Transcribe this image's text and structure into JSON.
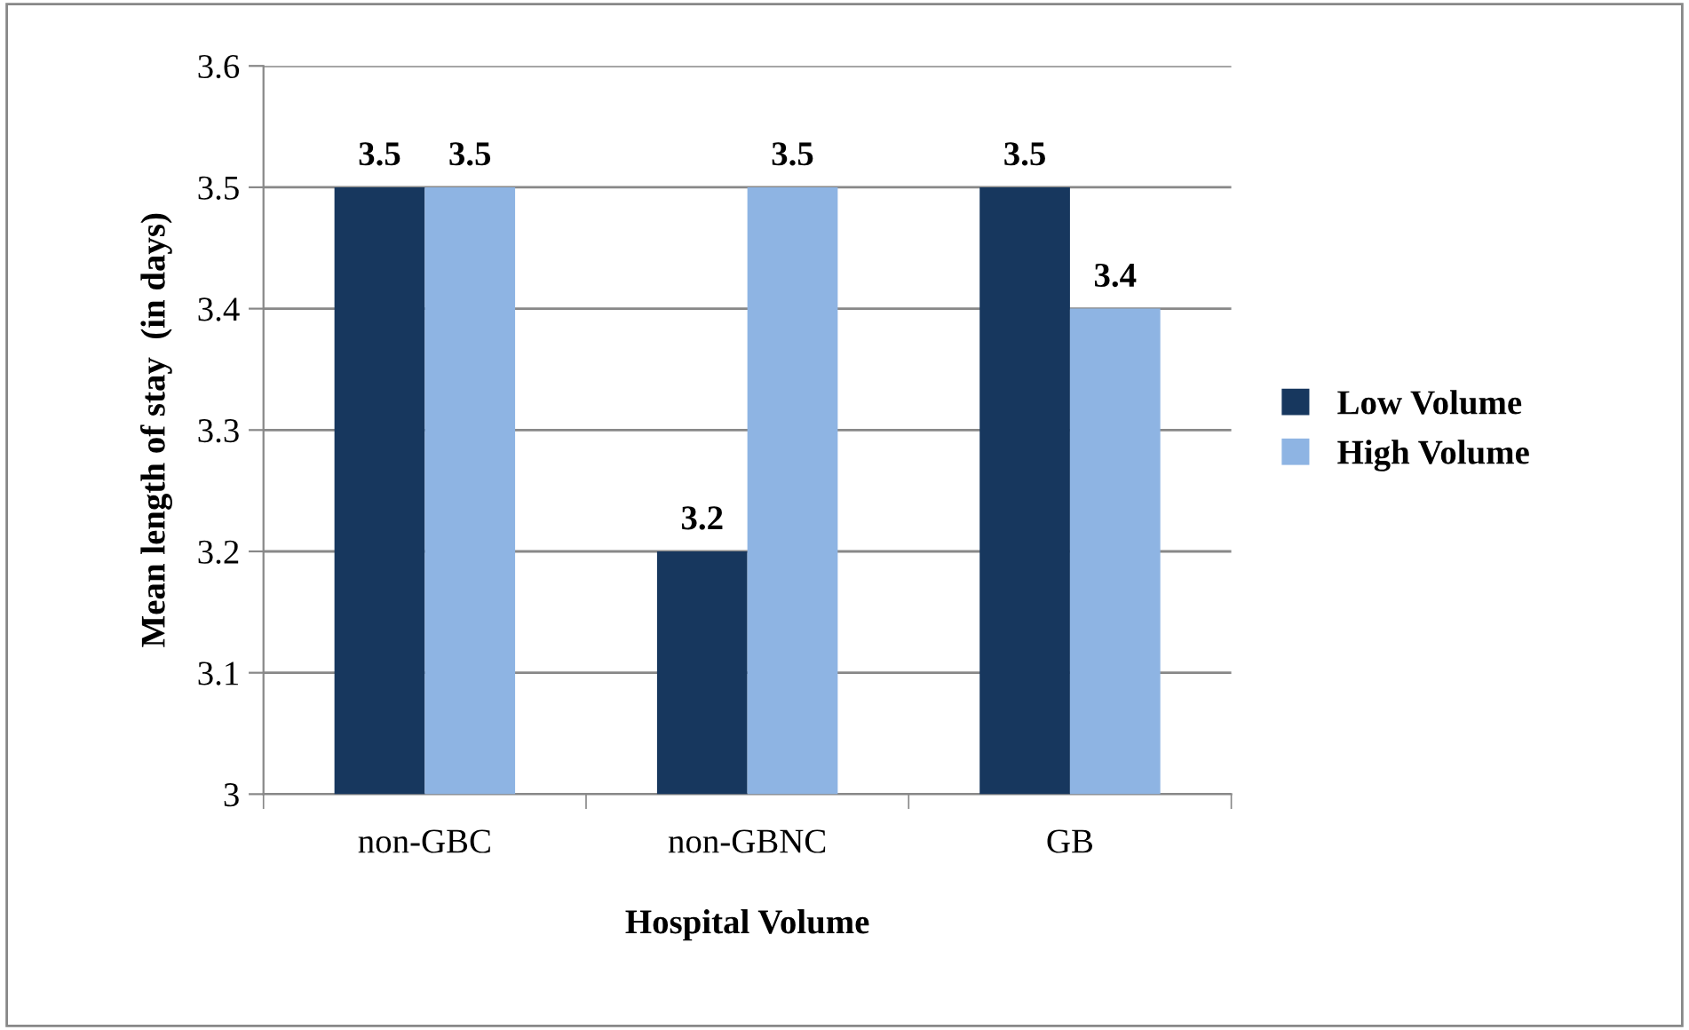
{
  "chart_data": {
    "type": "bar",
    "categories": [
      "non-GBC",
      "non-GBNC",
      "GB"
    ],
    "series": [
      {
        "name": "Low Volume",
        "color": "#17375e",
        "values": [
          3.5,
          3.2,
          3.5
        ]
      },
      {
        "name": "High Volume",
        "color": "#8eb4e3",
        "values": [
          3.5,
          3.5,
          3.4
        ]
      }
    ],
    "xlabel": "Hospital Volume",
    "ylabel": "Mean length of stay  (in days)",
    "ylim": [
      3,
      3.6
    ],
    "yticks": [
      3,
      3.1,
      3.2,
      3.3,
      3.4,
      3.5,
      3.6
    ],
    "grid": "y",
    "legend": "right",
    "data_labels": true
  }
}
